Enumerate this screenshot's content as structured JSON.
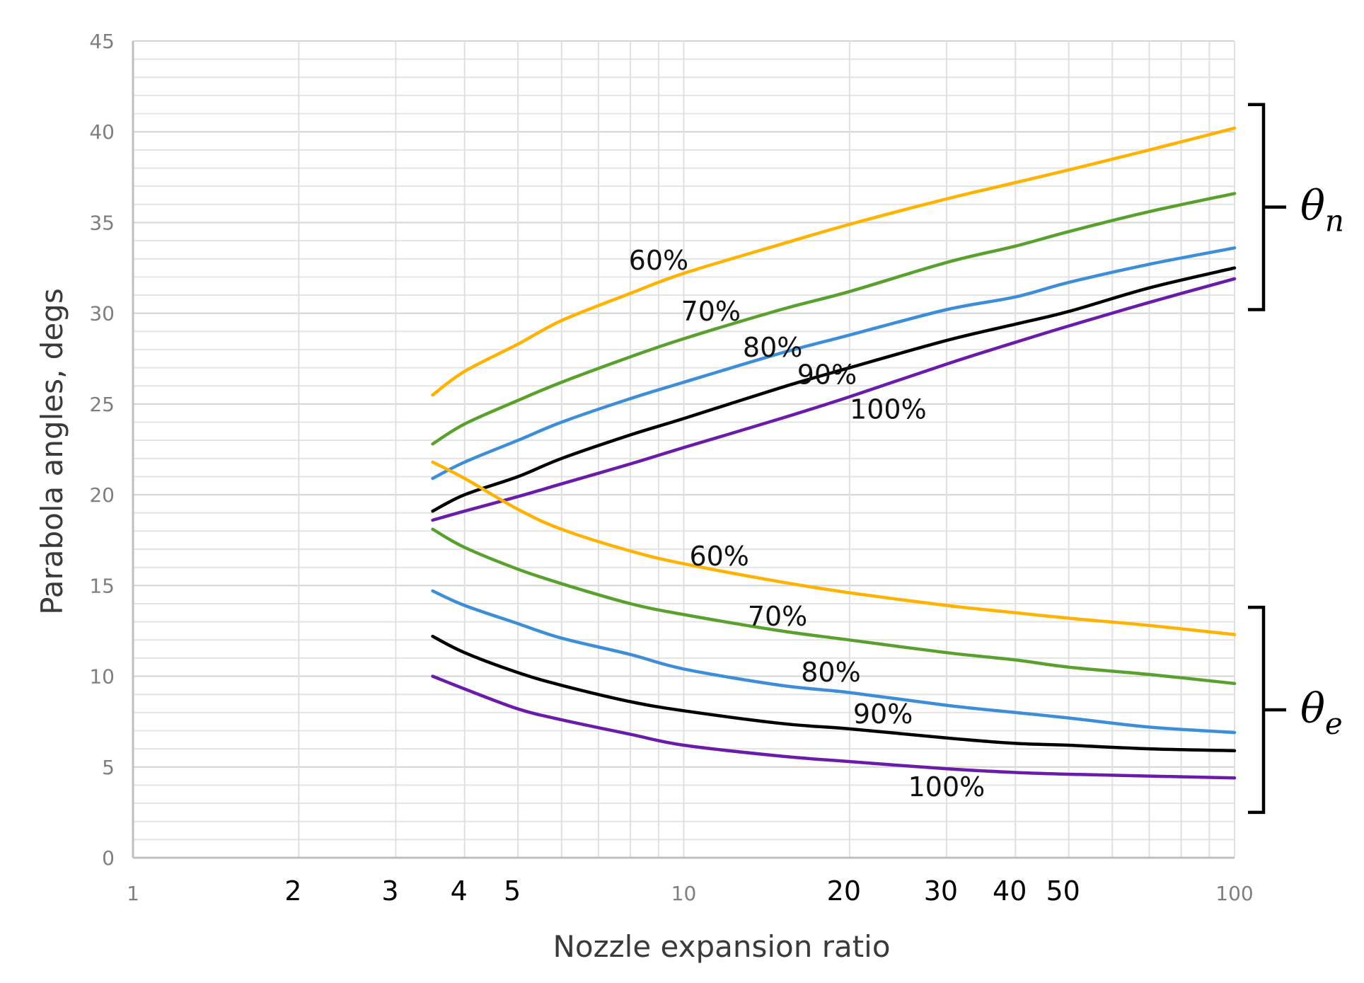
{
  "chart_data": {
    "type": "line",
    "title": "",
    "xlabel": "Nozzle expansion ratio",
    "ylabel": "Parabola angles, degs",
    "x_scale": "log",
    "xlim": [
      1,
      100
    ],
    "ylim": [
      0,
      45
    ],
    "yticks": [
      0,
      5,
      10,
      15,
      20,
      25,
      30,
      35,
      40,
      45
    ],
    "xticks_small": [
      {
        "value": 1,
        "label": "1"
      },
      {
        "value": 10,
        "label": "10"
      },
      {
        "value": 100,
        "label": "100"
      }
    ],
    "xticks_big": [
      {
        "value": 2,
        "label": "2"
      },
      {
        "value": 3,
        "label": "3"
      },
      {
        "value": 4,
        "label": "4"
      },
      {
        "value": 5,
        "label": "5"
      },
      {
        "value": 20,
        "label": "20"
      },
      {
        "value": 30,
        "label": "30"
      },
      {
        "value": 40,
        "label": "40"
      },
      {
        "value": 50,
        "label": "50"
      }
    ],
    "grid": true,
    "groups": [
      {
        "symbol": "θ",
        "subscript": "n",
        "ymin": 30.2,
        "ymax": 41.5
      },
      {
        "symbol": "θ",
        "subscript": "e",
        "ymin": 2.5,
        "ymax": 13.8
      }
    ],
    "series": [
      {
        "name": "60%",
        "group": "θn",
        "color": "#FFB300",
        "points": [
          [
            3.5,
            25.5
          ],
          [
            4,
            26.8
          ],
          [
            5,
            28.3
          ],
          [
            6,
            29.6
          ],
          [
            8,
            31.1
          ],
          [
            10,
            32.2
          ],
          [
            15,
            33.8
          ],
          [
            20,
            34.9
          ],
          [
            30,
            36.3
          ],
          [
            40,
            37.2
          ],
          [
            50,
            37.9
          ],
          [
            70,
            39.0
          ],
          [
            100,
            40.2
          ]
        ],
        "label": {
          "text": "60%",
          "x": 9.0,
          "y": 32.4
        }
      },
      {
        "name": "70%",
        "group": "θn",
        "color": "#5AA02C",
        "points": [
          [
            3.5,
            22.8
          ],
          [
            4,
            23.9
          ],
          [
            5,
            25.2
          ],
          [
            6,
            26.2
          ],
          [
            8,
            27.6
          ],
          [
            10,
            28.6
          ],
          [
            15,
            30.2
          ],
          [
            20,
            31.2
          ],
          [
            30,
            32.8
          ],
          [
            40,
            33.7
          ],
          [
            50,
            34.5
          ],
          [
            70,
            35.6
          ],
          [
            100,
            36.6
          ]
        ],
        "label": {
          "text": "70%",
          "x": 11.2,
          "y": 29.6
        }
      },
      {
        "name": "80%",
        "group": "θn",
        "color": "#3D8ED8",
        "points": [
          [
            3.5,
            20.9
          ],
          [
            4,
            21.8
          ],
          [
            5,
            23.0
          ],
          [
            6,
            24.0
          ],
          [
            8,
            25.3
          ],
          [
            10,
            26.2
          ],
          [
            15,
            27.8
          ],
          [
            20,
            28.8
          ],
          [
            30,
            30.2
          ],
          [
            40,
            30.9
          ],
          [
            50,
            31.7
          ],
          [
            70,
            32.7
          ],
          [
            100,
            33.6
          ]
        ],
        "label": {
          "text": "80%",
          "x": 14.5,
          "y": 27.6
        }
      },
      {
        "name": "90%",
        "group": "θn",
        "color": "#000000",
        "points": [
          [
            3.5,
            19.1
          ],
          [
            4,
            20.0
          ],
          [
            5,
            21.0
          ],
          [
            6,
            22.0
          ],
          [
            8,
            23.3
          ],
          [
            10,
            24.2
          ],
          [
            15,
            25.9
          ],
          [
            20,
            27.0
          ],
          [
            30,
            28.5
          ],
          [
            40,
            29.4
          ],
          [
            50,
            30.1
          ],
          [
            70,
            31.4
          ],
          [
            100,
            32.5
          ]
        ],
        "label": {
          "text": "90%",
          "x": 18.2,
          "y": 26.1
        }
      },
      {
        "name": "100%",
        "group": "θn",
        "color": "#6A1BAA",
        "points": [
          [
            3.5,
            18.6
          ],
          [
            4,
            19.1
          ],
          [
            5,
            19.9
          ],
          [
            6,
            20.6
          ],
          [
            8,
            21.7
          ],
          [
            10,
            22.6
          ],
          [
            15,
            24.2
          ],
          [
            20,
            25.4
          ],
          [
            30,
            27.2
          ],
          [
            40,
            28.4
          ],
          [
            50,
            29.3
          ],
          [
            70,
            30.6
          ],
          [
            100,
            31.9
          ]
        ],
        "label": {
          "text": "100%",
          "x": 23.5,
          "y": 24.2
        }
      },
      {
        "name": "60%",
        "group": "θe",
        "color": "#FFB300",
        "points": [
          [
            3.5,
            21.8
          ],
          [
            4,
            20.9
          ],
          [
            5,
            19.2
          ],
          [
            6,
            18.1
          ],
          [
            8,
            16.9
          ],
          [
            10,
            16.2
          ],
          [
            15,
            15.2
          ],
          [
            20,
            14.6
          ],
          [
            30,
            13.9
          ],
          [
            40,
            13.5
          ],
          [
            50,
            13.2
          ],
          [
            70,
            12.8
          ],
          [
            100,
            12.3
          ]
        ],
        "label": {
          "text": "60%",
          "x": 11.6,
          "y": 16.1
        }
      },
      {
        "name": "70%",
        "group": "θe",
        "color": "#5AA02C",
        "points": [
          [
            3.5,
            18.1
          ],
          [
            4,
            17.1
          ],
          [
            5,
            15.9
          ],
          [
            6,
            15.1
          ],
          [
            8,
            14.0
          ],
          [
            10,
            13.4
          ],
          [
            15,
            12.5
          ],
          [
            20,
            12.0
          ],
          [
            30,
            11.3
          ],
          [
            40,
            10.9
          ],
          [
            50,
            10.5
          ],
          [
            70,
            10.1
          ],
          [
            100,
            9.6
          ]
        ],
        "label": {
          "text": "70%",
          "x": 14.8,
          "y": 12.8
        }
      },
      {
        "name": "80%",
        "group": "θe",
        "color": "#3D8ED8",
        "points": [
          [
            3.5,
            14.7
          ],
          [
            4,
            13.9
          ],
          [
            5,
            12.9
          ],
          [
            6,
            12.1
          ],
          [
            8,
            11.2
          ],
          [
            10,
            10.4
          ],
          [
            15,
            9.5
          ],
          [
            20,
            9.1
          ],
          [
            30,
            8.4
          ],
          [
            40,
            8.0
          ],
          [
            50,
            7.7
          ],
          [
            70,
            7.2
          ],
          [
            100,
            6.9
          ]
        ],
        "label": {
          "text": "80%",
          "x": 18.5,
          "y": 9.7
        }
      },
      {
        "name": "90%",
        "group": "θe",
        "color": "#000000",
        "points": [
          [
            3.5,
            12.2
          ],
          [
            4,
            11.3
          ],
          [
            5,
            10.2
          ],
          [
            6,
            9.5
          ],
          [
            8,
            8.6
          ],
          [
            10,
            8.1
          ],
          [
            15,
            7.4
          ],
          [
            20,
            7.1
          ],
          [
            30,
            6.6
          ],
          [
            40,
            6.3
          ],
          [
            50,
            6.2
          ],
          [
            70,
            6.0
          ],
          [
            100,
            5.9
          ]
        ],
        "label": {
          "text": "90%",
          "x": 23.0,
          "y": 7.4
        }
      },
      {
        "name": "100%",
        "group": "θe",
        "color": "#6A1BAA",
        "points": [
          [
            3.5,
            10.0
          ],
          [
            4,
            9.3
          ],
          [
            5,
            8.2
          ],
          [
            6,
            7.6
          ],
          [
            8,
            6.8
          ],
          [
            10,
            6.2
          ],
          [
            15,
            5.6
          ],
          [
            20,
            5.3
          ],
          [
            30,
            4.9
          ],
          [
            40,
            4.7
          ],
          [
            50,
            4.6
          ],
          [
            70,
            4.5
          ],
          [
            100,
            4.4
          ]
        ],
        "label": {
          "text": "100%",
          "x": 30.0,
          "y": 3.4
        }
      }
    ]
  }
}
